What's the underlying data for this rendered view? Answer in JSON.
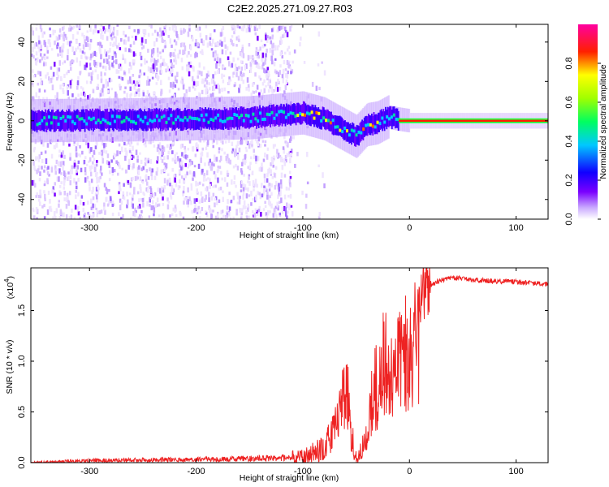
{
  "figure": {
    "title": "C2E2.2025.271.09.27.R03"
  },
  "chart_data": [
    {
      "type": "heatmap",
      "name": "spectrogram",
      "xlabel": "Height of straight line (km)",
      "ylabel": "Frequency (Hz)",
      "xlim": [
        -355,
        130
      ],
      "ylim": [
        -50,
        49
      ],
      "xticks": [
        -300,
        -200,
        -100,
        0,
        100
      ],
      "xtick_labels": [
        "-300",
        "-200",
        "-100",
        "0",
        "100"
      ],
      "yticks": [
        -40,
        -20,
        0,
        20,
        40
      ],
      "ytick_labels": [
        "-40",
        "-20",
        "0",
        "20",
        "40"
      ],
      "main_signal_frequency_track": {
        "x": [
          -355,
          -250,
          -150,
          -100,
          -80,
          -60,
          -50,
          -40,
          -30,
          -20,
          -12,
          0,
          50,
          130
        ],
        "frequency": [
          0,
          0.5,
          1.5,
          4,
          1,
          -5,
          -8,
          -2,
          -1,
          2,
          1,
          0,
          0,
          0
        ]
      },
      "colorbar": {
        "label": "Normalized spectral amplitude",
        "range": [
          0,
          1
        ],
        "ticks": [
          0.0,
          0.2,
          0.4,
          0.6,
          0.8
        ],
        "tick_labels": [
          "0.0",
          "0.2",
          "0.4",
          "0.6",
          "0.8"
        ],
        "colors": [
          "#ffffff",
          "#b48cff",
          "#7a00ff",
          "#0000ff",
          "#00d8ff",
          "#00ff40",
          "#ffff00",
          "#ff0000",
          "#ff00a0"
        ]
      }
    },
    {
      "type": "line",
      "name": "snr",
      "xlabel": "Height of straight line (km)",
      "ylabel": "SNR (10 * v/v)",
      "scale_label": "(x10",
      "scale_exponent": "4",
      "scale_suffix": ")",
      "xlim": [
        -355,
        130
      ],
      "ylim": [
        0,
        1.92
      ],
      "xticks": [
        -300,
        -200,
        -100,
        0,
        100
      ],
      "xtick_labels": [
        "-300",
        "-200",
        "-100",
        "0",
        "100"
      ],
      "yticks": [
        0.0,
        0.5,
        1.0,
        1.5
      ],
      "ytick_labels": [
        "0.0",
        "0.5",
        "1.0",
        "1.5"
      ],
      "color": "#ee2222",
      "series": [
        {
          "name": "SNR",
          "x": [
            -355,
            -300,
            -200,
            -150,
            -100,
            -80,
            -70,
            -65,
            -60,
            -57,
            -55,
            -50,
            -45,
            -40,
            -35,
            -30,
            -25,
            -20,
            -15,
            -10,
            -5,
            0,
            10,
            20,
            30,
            40,
            50,
            60,
            80,
            100,
            130
          ],
          "values": [
            0.0,
            0.02,
            0.03,
            0.04,
            0.05,
            0.15,
            0.35,
            0.5,
            0.7,
            0.9,
            0.3,
            0.05,
            0.1,
            0.3,
            0.65,
            0.9,
            1.0,
            1.05,
            1.15,
            1.25,
            1.35,
            1.5,
            1.65,
            1.75,
            1.8,
            1.82,
            1.82,
            1.8,
            1.79,
            1.78,
            1.76
          ]
        }
      ]
    }
  ]
}
